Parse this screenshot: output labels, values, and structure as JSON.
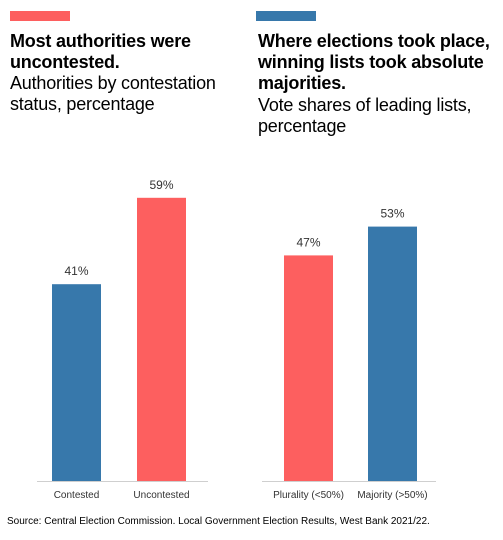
{
  "colors": {
    "blue": "#3778ab",
    "red": "#fd5f5f",
    "axis": "#cfcfcf"
  },
  "source": "Source: Central Election Commission. Local Government Election Results, West Bank 2021/22.",
  "chart_data": [
    {
      "type": "bar",
      "accent_color": "#fd5f5f",
      "title": "Most authorities were uncontested.",
      "subtitle": "Authorities by contestation status, percentage",
      "categories": [
        "Contested",
        "Uncontested"
      ],
      "values": [
        41,
        59
      ],
      "labels": [
        "41%",
        "59%"
      ],
      "bar_colors": [
        "#3778ab",
        "#fd5f5f"
      ],
      "ylim": [
        0,
        100
      ],
      "grid": false,
      "legend": "none"
    },
    {
      "type": "bar",
      "accent_color": "#3778ab",
      "title": "Where elections took place, winning lists took absolute majorities.",
      "subtitle": "Vote shares of leading lists, percentage",
      "categories": [
        "Plurality (<50%)",
        "Majority (>50%)"
      ],
      "values": [
        47,
        53
      ],
      "labels": [
        "47%",
        "53%"
      ],
      "bar_colors": [
        "#fd5f5f",
        "#3778ab"
      ],
      "ylim": [
        0,
        100
      ],
      "grid": false,
      "legend": "none"
    }
  ]
}
